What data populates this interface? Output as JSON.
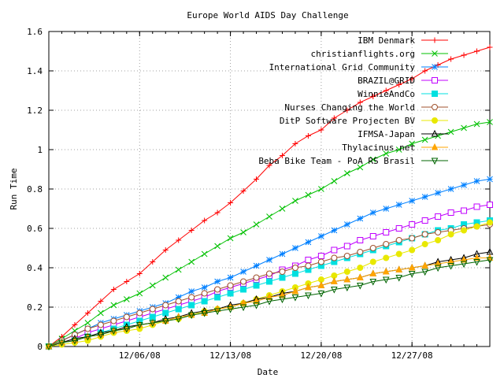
{
  "chart_data": {
    "type": "line",
    "title": "Europe World AIDS Day Challenge",
    "xlabel": "Date",
    "ylabel": "Run Time",
    "ylim": [
      0,
      1.6
    ],
    "xlim": [
      "11/29/08",
      "01/02/09"
    ],
    "yticks": [
      "0",
      "0.2",
      "0.4",
      "0.6",
      "0.8",
      "1",
      "1.2",
      "1.4",
      "1.6"
    ],
    "xticks": [
      {
        "label": "12/06/08",
        "date": "2008-12-06"
      },
      {
        "label": "12/13/08",
        "date": "2008-12-13"
      },
      {
        "label": "12/20/08",
        "date": "2008-12-20"
      },
      {
        "label": "12/27/08",
        "date": "2008-12-27"
      }
    ],
    "grid": true,
    "legend_position": "top-right",
    "dates": [
      "2008-11-29",
      "2008-11-30",
      "2008-12-01",
      "2008-12-02",
      "2008-12-03",
      "2008-12-04",
      "2008-12-05",
      "2008-12-06",
      "2008-12-07",
      "2008-12-08",
      "2008-12-09",
      "2008-12-10",
      "2008-12-11",
      "2008-12-12",
      "2008-12-13",
      "2008-12-14",
      "2008-12-15",
      "2008-12-16",
      "2008-12-17",
      "2008-12-18",
      "2008-12-19",
      "2008-12-20",
      "2008-12-21",
      "2008-12-22",
      "2008-12-23",
      "2008-12-24",
      "2008-12-25",
      "2008-12-26",
      "2008-12-27",
      "2008-12-28",
      "2008-12-29",
      "2008-12-30",
      "2008-12-31",
      "2009-01-01",
      "2009-01-02"
    ],
    "series": [
      {
        "name": "IBM Denmark",
        "color": "#ff0000",
        "marker": "plus",
        "values": [
          0,
          0.05,
          0.11,
          0.17,
          0.23,
          0.29,
          0.33,
          0.37,
          0.43,
          0.49,
          0.54,
          0.59,
          0.64,
          0.68,
          0.73,
          0.79,
          0.85,
          0.92,
          0.97,
          1.03,
          1.07,
          1.1,
          1.16,
          1.2,
          1.24,
          1.27,
          1.3,
          1.33,
          1.36,
          1.4,
          1.43,
          1.46,
          1.48,
          1.5,
          1.52
        ]
      },
      {
        "name": "christianflights.org",
        "color": "#00c000",
        "marker": "x",
        "values": [
          0,
          0.04,
          0.08,
          0.12,
          0.17,
          0.21,
          0.24,
          0.27,
          0.31,
          0.35,
          0.39,
          0.43,
          0.47,
          0.51,
          0.55,
          0.58,
          0.62,
          0.66,
          0.7,
          0.74,
          0.77,
          0.8,
          0.84,
          0.88,
          0.91,
          0.95,
          0.98,
          1.0,
          1.03,
          1.05,
          1.07,
          1.09,
          1.11,
          1.13,
          1.14
        ]
      },
      {
        "name": "International Grid Community",
        "color": "#0080ff",
        "marker": "star",
        "values": [
          0,
          0.03,
          0.06,
          0.09,
          0.12,
          0.14,
          0.16,
          0.18,
          0.2,
          0.22,
          0.25,
          0.28,
          0.3,
          0.33,
          0.35,
          0.38,
          0.41,
          0.44,
          0.47,
          0.5,
          0.53,
          0.56,
          0.59,
          0.62,
          0.65,
          0.68,
          0.7,
          0.72,
          0.74,
          0.76,
          0.78,
          0.8,
          0.82,
          0.84,
          0.85
        ]
      },
      {
        "name": "BRAZIL@GRID",
        "color": "#c000ff",
        "marker": "square",
        "values": [
          0,
          0.02,
          0.04,
          0.07,
          0.09,
          0.11,
          0.13,
          0.15,
          0.17,
          0.19,
          0.21,
          0.23,
          0.25,
          0.28,
          0.3,
          0.32,
          0.34,
          0.36,
          0.39,
          0.41,
          0.44,
          0.46,
          0.49,
          0.51,
          0.54,
          0.56,
          0.58,
          0.6,
          0.62,
          0.64,
          0.66,
          0.68,
          0.69,
          0.71,
          0.72
        ]
      },
      {
        "name": "WinnieAndCo",
        "color": "#00e0e0",
        "marker": "filled-square",
        "values": [
          0,
          0.02,
          0.03,
          0.05,
          0.07,
          0.09,
          0.11,
          0.13,
          0.15,
          0.17,
          0.19,
          0.21,
          0.23,
          0.25,
          0.27,
          0.29,
          0.31,
          0.33,
          0.35,
          0.37,
          0.39,
          0.41,
          0.43,
          0.45,
          0.47,
          0.49,
          0.51,
          0.53,
          0.55,
          0.57,
          0.59,
          0.6,
          0.62,
          0.63,
          0.64
        ]
      },
      {
        "name": "Nurses Changing the World",
        "color": "#a0522d",
        "marker": "circle",
        "values": [
          0,
          0.03,
          0.06,
          0.09,
          0.11,
          0.13,
          0.15,
          0.17,
          0.19,
          0.21,
          0.23,
          0.25,
          0.27,
          0.29,
          0.31,
          0.33,
          0.35,
          0.37,
          0.38,
          0.4,
          0.41,
          0.43,
          0.45,
          0.46,
          0.48,
          0.5,
          0.52,
          0.54,
          0.55,
          0.57,
          0.58,
          0.59,
          0.6,
          0.61,
          0.62
        ]
      },
      {
        "name": "DitP Software Projecten BV",
        "color": "#e8e800",
        "marker": "filled-circle",
        "values": [
          0,
          0.01,
          0.02,
          0.03,
          0.05,
          0.07,
          0.08,
          0.09,
          0.11,
          0.13,
          0.14,
          0.16,
          0.18,
          0.19,
          0.2,
          0.22,
          0.24,
          0.26,
          0.28,
          0.3,
          0.32,
          0.34,
          0.36,
          0.38,
          0.4,
          0.43,
          0.45,
          0.47,
          0.49,
          0.52,
          0.54,
          0.57,
          0.59,
          0.61,
          0.63
        ]
      },
      {
        "name": "IFMSA-Japan",
        "color": "#000000",
        "marker": "triangle",
        "values": [
          0,
          0.02,
          0.04,
          0.05,
          0.07,
          0.08,
          0.1,
          0.11,
          0.12,
          0.14,
          0.15,
          0.17,
          0.18,
          0.19,
          0.21,
          0.22,
          0.24,
          0.25,
          0.27,
          0.28,
          0.3,
          0.31,
          0.33,
          0.34,
          0.35,
          0.37,
          0.38,
          0.39,
          0.4,
          0.41,
          0.43,
          0.44,
          0.45,
          0.47,
          0.48
        ]
      },
      {
        "name": "Thylacinus.net",
        "color": "#ffa500",
        "marker": "filled-triangle",
        "values": [
          0,
          0.02,
          0.03,
          0.05,
          0.06,
          0.08,
          0.09,
          0.11,
          0.12,
          0.13,
          0.15,
          0.16,
          0.17,
          0.19,
          0.2,
          0.22,
          0.23,
          0.25,
          0.26,
          0.28,
          0.3,
          0.31,
          0.33,
          0.34,
          0.35,
          0.37,
          0.38,
          0.39,
          0.4,
          0.41,
          0.42,
          0.43,
          0.44,
          0.45,
          0.45
        ]
      },
      {
        "name": "Beba Bike Team - PoA RS Brasil",
        "color": "#006400",
        "marker": "inverted-triangle",
        "values": [
          0,
          0.02,
          0.03,
          0.05,
          0.06,
          0.08,
          0.09,
          0.11,
          0.12,
          0.13,
          0.14,
          0.16,
          0.17,
          0.18,
          0.19,
          0.2,
          0.21,
          0.23,
          0.24,
          0.25,
          0.26,
          0.27,
          0.29,
          0.3,
          0.31,
          0.33,
          0.34,
          0.35,
          0.37,
          0.38,
          0.4,
          0.41,
          0.42,
          0.43,
          0.44
        ]
      }
    ]
  }
}
